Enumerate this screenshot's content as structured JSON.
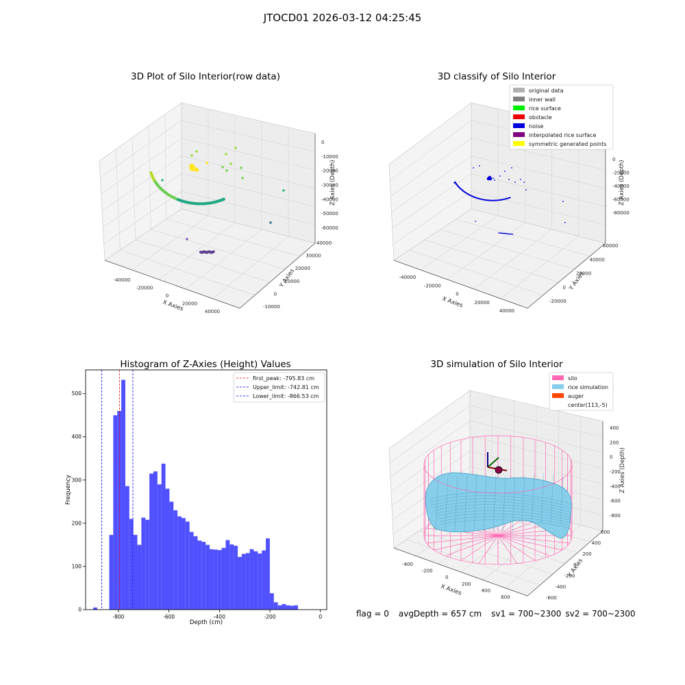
{
  "suptitle": "JTOCD01 2026-03-12 04:25:45",
  "panels": {
    "raw": {
      "title": "3D Plot of Silo Interior(row data)",
      "x_label": "X Axies",
      "y_label": "Y Axies",
      "z_label": "Z Axies (Depth)",
      "x_ticks": [
        "-40000",
        "-20000",
        "0",
        "20000",
        "40000"
      ],
      "y_ticks": [
        "-10000",
        "0",
        "10000",
        "20000",
        "30000",
        "40000"
      ],
      "z_ticks": [
        "0",
        "-10000",
        "-20000",
        "-30000",
        "-40000",
        "-50000",
        "-60000"
      ]
    },
    "classify": {
      "title": "3D classify of Silo Interior",
      "x_label": "X Axies",
      "y_label": "Y Axies",
      "z_label": "Z Axies (Depth)",
      "x_ticks": [
        "-40000",
        "-20000",
        "0",
        "20000",
        "40000"
      ],
      "y_ticks": [
        "-20000",
        "0",
        "20000",
        "40000",
        "60000"
      ],
      "z_ticks": [
        "0",
        "-20000",
        "-40000",
        "-60000",
        "-80000"
      ],
      "legend": [
        {
          "label": "original data",
          "color": "#b0b0b0"
        },
        {
          "label": "inner wall",
          "color": "#808080"
        },
        {
          "label": "rice surface",
          "color": "#00ee00"
        },
        {
          "label": "obstacle",
          "color": "#ee0000"
        },
        {
          "label": "noise",
          "color": "#0000dd"
        },
        {
          "label": "interpolated rice surface",
          "color": "#800080"
        },
        {
          "label": "symmetric generated points",
          "color": "#ffff00"
        }
      ]
    },
    "simulation": {
      "title": "3D simulation of Silo Interior",
      "x_label": "X Axies",
      "y_label": "Y Axies",
      "z_label": "Z Axies (Depth)",
      "x_ticks": [
        "-400",
        "-200",
        "0",
        "200",
        "400",
        "600"
      ],
      "y_ticks": [
        "-600",
        "-400",
        "-200",
        "0",
        "200",
        "400",
        "600"
      ],
      "z_ticks": [
        "400",
        "200",
        "0",
        "-200",
        "-400",
        "-600",
        "-800"
      ],
      "legend": [
        {
          "label": "silo",
          "color": "#ff69b4"
        },
        {
          "label": "rice simulation",
          "color": "#87ceeb"
        },
        {
          "label": "auger",
          "color": "#ff4500"
        },
        {
          "label": "center(113,-5)",
          "color": ""
        }
      ]
    }
  },
  "chart_data": [
    {
      "type": "scatter",
      "subtype": "3d",
      "title": "3D Plot of Silo Interior(row data)",
      "xlabel": "X Axies",
      "ylabel": "Y Axies",
      "zlabel": "Z Axies (Depth)",
      "xlim": [
        -50000,
        50000
      ],
      "ylim": [
        -12000,
        45000
      ],
      "zlim": [
        -65000,
        3000
      ]
    },
    {
      "type": "scatter",
      "subtype": "3d",
      "title": "3D classify of Silo Interior",
      "xlabel": "X Axies",
      "ylabel": "Y Axies",
      "zlabel": "Z Axies (Depth)",
      "xlim": [
        -50000,
        50000
      ],
      "ylim": [
        -30000,
        65000
      ],
      "zlim": [
        -85000,
        5000
      ],
      "legend_position": "top-right"
    },
    {
      "type": "bar",
      "subtype": "histogram",
      "title": "Histogram of Z-Axies (Height) Values",
      "xlabel": "Depth (cm)",
      "ylabel": "Frequency",
      "xlim": [
        -930,
        25
      ],
      "ylim": [
        0,
        555
      ],
      "x_ticks": [
        -800,
        -600,
        -400,
        -200,
        0
      ],
      "y_ticks": [
        0,
        100,
        200,
        300,
        400,
        500
      ],
      "bin_start": -900,
      "bin_width": 15.9,
      "values": [
        5,
        0,
        0,
        0,
        173,
        450,
        460,
        532,
        286,
        210,
        173,
        150,
        213,
        208,
        315,
        320,
        290,
        338,
        280,
        250,
        230,
        216,
        212,
        204,
        180,
        170,
        160,
        157,
        150,
        140,
        139,
        138,
        143,
        161,
        151,
        148,
        122,
        129,
        131,
        140,
        135,
        130,
        137,
        165,
        38,
        17,
        10,
        13,
        10,
        9,
        10
      ],
      "legend": [
        {
          "label": "first_peak: -795.83 cm",
          "value": -795.83,
          "color": "#ff0000"
        },
        {
          "label": "Upper_limit: -742.81 cm",
          "value": -742.81,
          "color": "#0000ff"
        },
        {
          "label": "Lower_limit: -866.53 cm",
          "value": -866.53,
          "color": "#0000ff"
        }
      ],
      "legend_position": "top-right"
    },
    {
      "type": "area",
      "subtype": "3d-surface",
      "title": "3D simulation of Silo Interior",
      "xlabel": "X Axies",
      "ylabel": "Y Axies",
      "zlabel": "Z Axies (Depth)",
      "xlim": [
        -550,
        750
      ],
      "ylim": [
        -700,
        650
      ],
      "zlim": [
        -900,
        450
      ],
      "legend_position": "top-right"
    }
  ],
  "footer": {
    "flag": "flag = 0",
    "avg_depth": "avgDepth = 657 cm",
    "sv1": "sv1 = 700~2300",
    "sv2": "sv2 = 700~2300"
  }
}
